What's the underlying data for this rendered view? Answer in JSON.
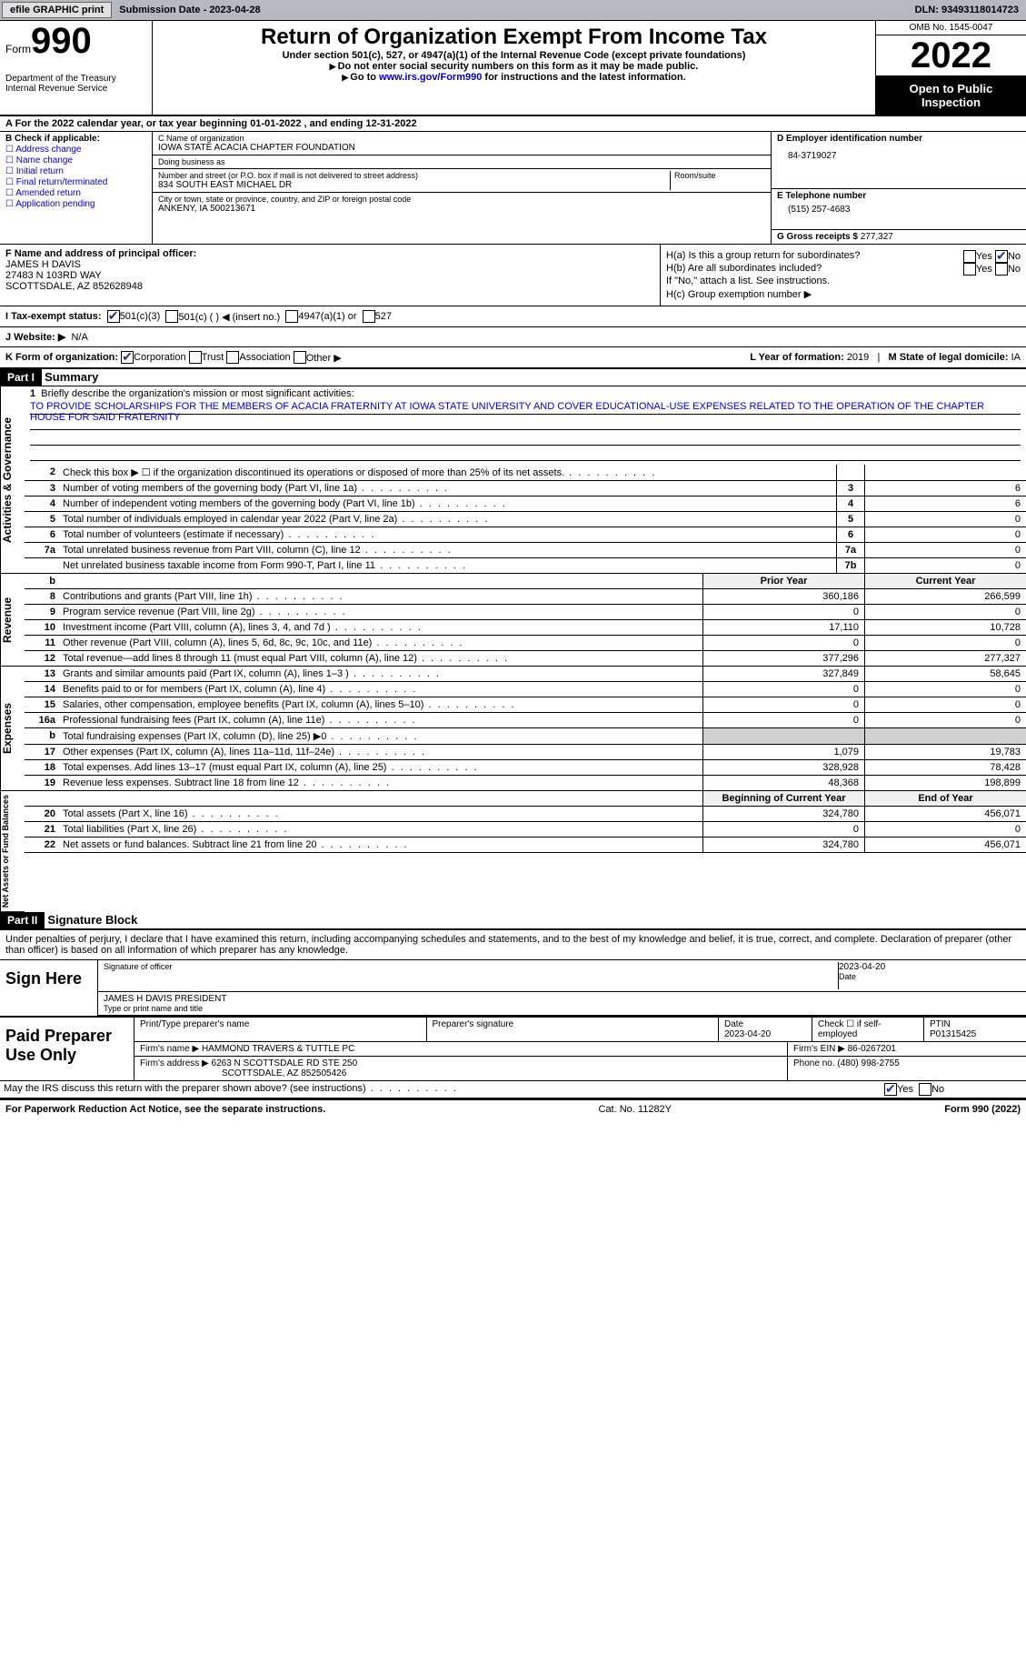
{
  "topbar": {
    "efile": "efile GRAPHIC print",
    "submission": "Submission Date - 2023-04-28",
    "dln": "DLN: 93493118014723"
  },
  "header": {
    "form_word": "Form",
    "form_num": "990",
    "title": "Return of Organization Exempt From Income Tax",
    "sub1": "Under section 501(c), 527, or 4947(a)(1) of the Internal Revenue Code (except private foundations)",
    "sub2a": "Do not enter social security numbers on this form as it may be made public.",
    "sub2b": "Go to",
    "sub2link": "www.irs.gov/Form990",
    "sub2c": "for instructions and the latest information.",
    "dept": "Department of the Treasury Internal Revenue Service",
    "omb": "OMB No. 1545-0047",
    "year": "2022",
    "open": "Open to Public Inspection"
  },
  "row_a": "A For the 2022 calendar year, or tax year beginning 01-01-2022    , and ending 12-31-2022",
  "col_b": {
    "label": "B Check if applicable:",
    "items": [
      "Address change",
      "Name change",
      "Initial return",
      "Final return/terminated",
      "Amended return",
      "Application pending"
    ]
  },
  "col_c": {
    "name_lbl": "C Name of organization",
    "name": "IOWA STATE ACACIA CHAPTER FOUNDATION",
    "dba_lbl": "Doing business as",
    "dba": "",
    "street_lbl": "Number and street (or P.O. box if mail is not delivered to street address)",
    "street": "834 SOUTH EAST MICHAEL DR",
    "room_lbl": "Room/suite",
    "city_lbl": "City or town, state or province, country, and ZIP or foreign postal code",
    "city": "ANKENY, IA  500213671"
  },
  "col_d": {
    "ein_lbl": "D Employer identification number",
    "ein": "84-3719027",
    "phone_lbl": "E Telephone number",
    "phone": "(515) 257-4683",
    "gross_lbl": "G Gross receipts $",
    "gross": "277,327"
  },
  "col_f": {
    "lbl": "F Name and address of principal officer:",
    "name": "JAMES H DAVIS",
    "addr1": "27483 N 103RD WAY",
    "addr2": "SCOTTSDALE, AZ  852628948"
  },
  "col_h": {
    "ha": "H(a)  Is this a group return for subordinates?",
    "hb": "H(b)  Are all subordinates included?",
    "hb_note": "If \"No,\" attach a list. See instructions.",
    "hc": "H(c)  Group exemption number ▶"
  },
  "row_i": {
    "lbl": "I   Tax-exempt status:",
    "opts": [
      "501(c)(3)",
      "501(c) (   ) ◀ (insert no.)",
      "4947(a)(1) or",
      "527"
    ]
  },
  "row_j": {
    "lbl": "J   Website: ▶",
    "val": "N/A"
  },
  "row_k": {
    "lbl": "K Form of organization:",
    "opts": [
      "Corporation",
      "Trust",
      "Association",
      "Other ▶"
    ],
    "year_lbl": "L Year of formation:",
    "year": "2019",
    "state_lbl": "M State of legal domicile:",
    "state": "IA"
  },
  "parts": {
    "p1": "Part I",
    "p1_title": "Summary",
    "p2": "Part II",
    "p2_title": "Signature Block"
  },
  "mission": {
    "q": "Briefly describe the organization's mission or most significant activities:",
    "text": "TO PROVIDE SCHOLARSHIPS FOR THE MEMBERS OF ACACIA FRATERNITY AT IOWA STATE UNIVERSITY AND COVER EDUCATIONAL-USE EXPENSES RELATED TO THE OPERATION OF THE CHAPTER HOUSE FOR SAID FRATERNITY"
  },
  "side_labels": {
    "gov": "Activities & Governance",
    "rev": "Revenue",
    "exp": "Expenses",
    "net": "Net Assets or Fund Balances"
  },
  "gov_lines": [
    {
      "n": "2",
      "t": "Check this box ▶ ☐  if the organization discontinued its operations or disposed of more than 25% of its net assets.",
      "box": "",
      "c1": "",
      "c2": ""
    },
    {
      "n": "3",
      "t": "Number of voting members of the governing body (Part VI, line 1a)",
      "box": "3",
      "c1": "",
      "c2": "6"
    },
    {
      "n": "4",
      "t": "Number of independent voting members of the governing body (Part VI, line 1b)",
      "box": "4",
      "c1": "",
      "c2": "6"
    },
    {
      "n": "5",
      "t": "Total number of individuals employed in calendar year 2022 (Part V, line 2a)",
      "box": "5",
      "c1": "",
      "c2": "0"
    },
    {
      "n": "6",
      "t": "Total number of volunteers (estimate if necessary)",
      "box": "6",
      "c1": "",
      "c2": "0"
    },
    {
      "n": "7a",
      "t": "Total unrelated business revenue from Part VIII, column (C), line 12",
      "box": "7a",
      "c1": "",
      "c2": "0"
    },
    {
      "n": "",
      "t": "Net unrelated business taxable income from Form 990-T, Part I, line 11",
      "box": "7b",
      "c1": "",
      "c2": "0"
    }
  ],
  "col_headers": {
    "h1": "Prior Year",
    "h2": "Current Year"
  },
  "rev_lines": [
    {
      "n": "8",
      "t": "Contributions and grants (Part VIII, line 1h)",
      "c1": "360,186",
      "c2": "266,599"
    },
    {
      "n": "9",
      "t": "Program service revenue (Part VIII, line 2g)",
      "c1": "0",
      "c2": "0"
    },
    {
      "n": "10",
      "t": "Investment income (Part VIII, column (A), lines 3, 4, and 7d )",
      "c1": "17,110",
      "c2": "10,728"
    },
    {
      "n": "11",
      "t": "Other revenue (Part VIII, column (A), lines 5, 6d, 8c, 9c, 10c, and 11e)",
      "c1": "0",
      "c2": "0"
    },
    {
      "n": "12",
      "t": "Total revenue—add lines 8 through 11 (must equal Part VIII, column (A), line 12)",
      "c1": "377,296",
      "c2": "277,327"
    }
  ],
  "exp_lines": [
    {
      "n": "13",
      "t": "Grants and similar amounts paid (Part IX, column (A), lines 1–3 )",
      "c1": "327,849",
      "c2": "58,645"
    },
    {
      "n": "14",
      "t": "Benefits paid to or for members (Part IX, column (A), line 4)",
      "c1": "0",
      "c2": "0"
    },
    {
      "n": "15",
      "t": "Salaries, other compensation, employee benefits (Part IX, column (A), lines 5–10)",
      "c1": "0",
      "c2": "0"
    },
    {
      "n": "16a",
      "t": "Professional fundraising fees (Part IX, column (A), line 11e)",
      "c1": "0",
      "c2": "0"
    },
    {
      "n": "b",
      "t": "Total fundraising expenses (Part IX, column (D), line 25) ▶0",
      "c1": "",
      "c2": "",
      "grey": true
    },
    {
      "n": "17",
      "t": "Other expenses (Part IX, column (A), lines 11a–11d, 11f–24e)",
      "c1": "1,079",
      "c2": "19,783"
    },
    {
      "n": "18",
      "t": "Total expenses. Add lines 13–17 (must equal Part IX, column (A), line 25)",
      "c1": "328,928",
      "c2": "78,428"
    },
    {
      "n": "19",
      "t": "Revenue less expenses. Subtract line 18 from line 12",
      "c1": "48,368",
      "c2": "198,899"
    }
  ],
  "net_headers": {
    "h1": "Beginning of Current Year",
    "h2": "End of Year"
  },
  "net_lines": [
    {
      "n": "20",
      "t": "Total assets (Part X, line 16)",
      "c1": "324,780",
      "c2": "456,071"
    },
    {
      "n": "21",
      "t": "Total liabilities (Part X, line 26)",
      "c1": "0",
      "c2": "0"
    },
    {
      "n": "22",
      "t": "Net assets or fund balances. Subtract line 21 from line 20",
      "c1": "324,780",
      "c2": "456,071"
    }
  ],
  "sig": {
    "decl": "Under penalties of perjury, I declare that I have examined this return, including accompanying schedules and statements, and to the best of my knowledge and belief, it is true, correct, and complete. Declaration of preparer (other than officer) is based on all information of which preparer has any knowledge.",
    "sign_here": "Sign Here",
    "sig_officer": "Signature of officer",
    "date": "2023-04-20",
    "date_lbl": "Date",
    "name": "JAMES H DAVIS  PRESIDENT",
    "name_lbl": "Type or print name and title"
  },
  "prep": {
    "label": "Paid Preparer Use Only",
    "name_lbl": "Print/Type preparer's name",
    "sig_lbl": "Preparer's signature",
    "date_lbl": "Date",
    "date": "2023-04-20",
    "self_lbl": "Check ☐ if self-employed",
    "ptin_lbl": "PTIN",
    "ptin": "P01315425",
    "firm_lbl": "Firm's name    ▶",
    "firm": "HAMMOND TRAVERS & TUTTLE PC",
    "ein_lbl": "Firm's EIN ▶",
    "ein": "86-0267201",
    "addr_lbl": "Firm's address ▶",
    "addr1": "6263 N SCOTTSDALE RD STE 250",
    "addr2": "SCOTTSDALE, AZ  852505426",
    "phone_lbl": "Phone no.",
    "phone": "(480) 998-2755"
  },
  "discuss": "May the IRS discuss this return with the preparer shown above? (see instructions)",
  "footer": {
    "pra": "For Paperwork Reduction Act Notice, see the separate instructions.",
    "cat": "Cat. No. 11282Y",
    "form": "Form 990 (2022)"
  }
}
